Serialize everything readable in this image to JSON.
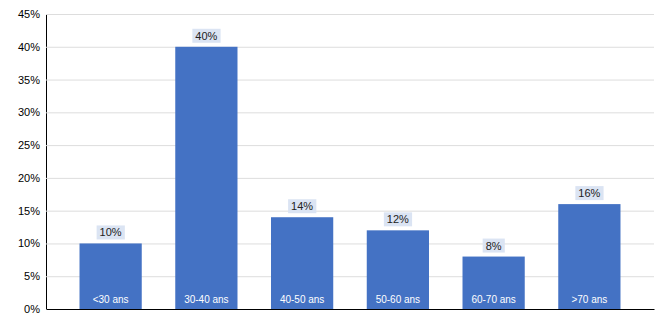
{
  "chart_data": {
    "type": "bar",
    "categories": [
      "<30 ans",
      "30-40 ans",
      "40-50 ans",
      "50-60 ans",
      "60-70 ans",
      ">70 ans"
    ],
    "values": [
      10,
      40,
      14,
      12,
      8,
      16
    ],
    "value_labels": [
      "10%",
      "40%",
      "14%",
      "12%",
      "8%",
      "16%"
    ],
    "data_labels": true,
    "color": "#4472C4",
    "ylim": [
      0,
      45
    ],
    "yticks": [
      {
        "value": 0,
        "label": "0%"
      },
      {
        "value": 5,
        "label": "5%"
      },
      {
        "value": 10,
        "label": "10%"
      },
      {
        "value": 15,
        "label": "15%"
      },
      {
        "value": 20,
        "label": "20%"
      },
      {
        "value": 25,
        "label": "25%"
      },
      {
        "value": 30,
        "label": "30%"
      },
      {
        "value": 35,
        "label": "35%"
      },
      {
        "value": 40,
        "label": "40%"
      },
      {
        "value": 45,
        "label": "45%"
      }
    ],
    "grid": true,
    "tick_labels": "y"
  }
}
